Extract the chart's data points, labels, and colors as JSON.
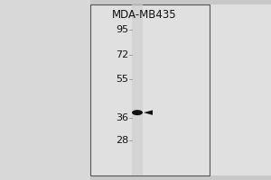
{
  "title": "MDA-MB435",
  "bg_color": "#d0d0d0",
  "panel_bg": "#e8e8e8",
  "lane_color": "#c8c8c8",
  "band_color": "#111111",
  "mw_markers": [
    95,
    72,
    55,
    36,
    28
  ],
  "band_mw": 38,
  "mw_min": 22,
  "mw_max": 105,
  "title_fontsize": 8.5,
  "marker_fontsize": 8.0,
  "figsize": [
    3.0,
    2.0
  ],
  "dpi": 100
}
